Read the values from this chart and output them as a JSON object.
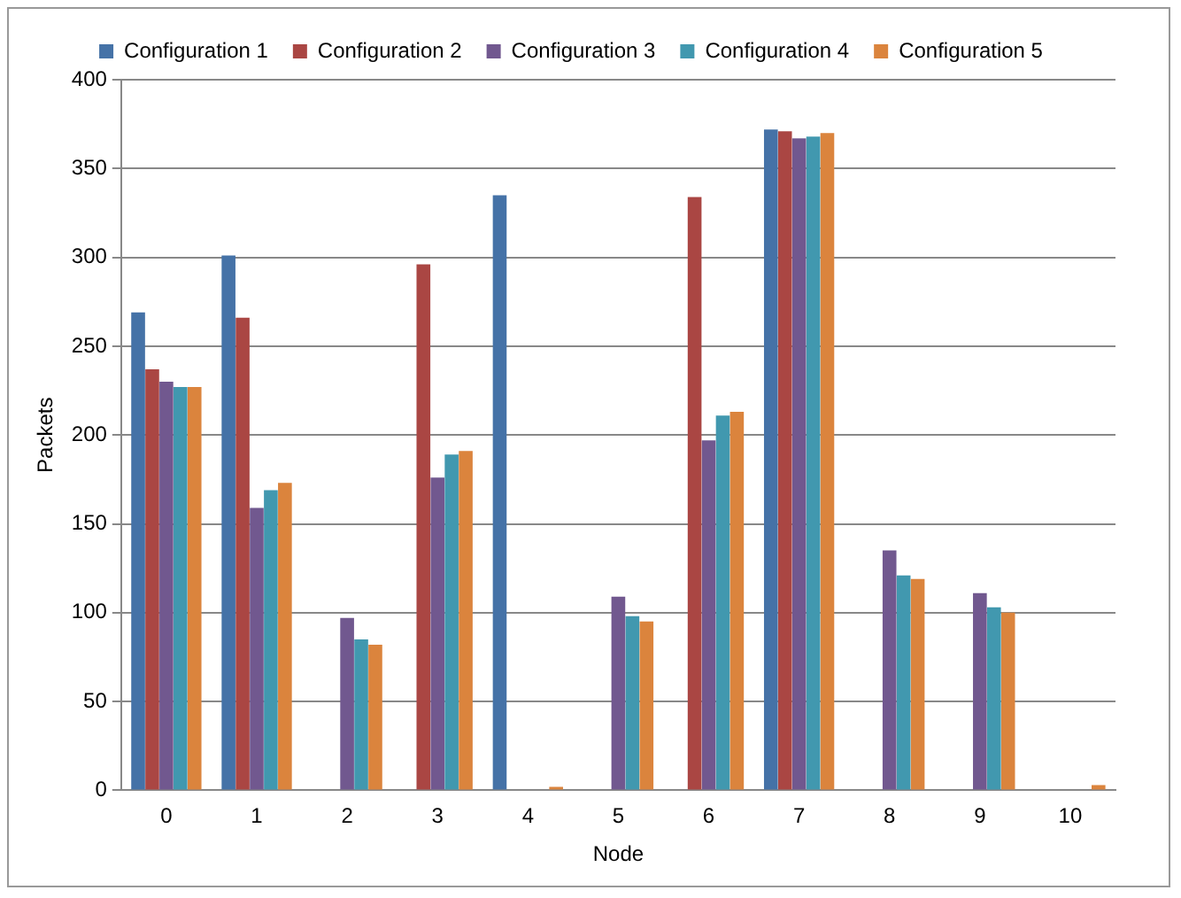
{
  "chart_data": {
    "type": "bar",
    "xlabel": "Node",
    "ylabel": "Packets",
    "categories": [
      "0",
      "1",
      "2",
      "3",
      "4",
      "5",
      "6",
      "7",
      "8",
      "9",
      "10"
    ],
    "series": [
      {
        "name": "Configuration 1",
        "color": "#4572a7",
        "values": [
          269,
          301,
          0,
          0,
          335,
          0,
          0,
          372,
          0,
          0,
          0
        ]
      },
      {
        "name": "Configuration 2",
        "color": "#aa4643",
        "values": [
          237,
          266,
          0,
          296,
          0,
          0,
          334,
          371,
          0,
          0,
          0
        ]
      },
      {
        "name": "Configuration 3",
        "color": "#71588f",
        "values": [
          230,
          159,
          97,
          176,
          null,
          109,
          197,
          367,
          135,
          111,
          0
        ]
      },
      {
        "name": "Configuration 4",
        "color": "#4198af",
        "values": [
          227,
          169,
          85,
          189,
          0,
          98,
          211,
          368,
          121,
          103,
          0
        ]
      },
      {
        "name": "Configuration 5",
        "color": "#db843d",
        "values": [
          227,
          173,
          82,
          191,
          2,
          95,
          213,
          370,
          119,
          100,
          3
        ]
      }
    ],
    "ylim": [
      0,
      400
    ],
    "yticks": [
      0,
      50,
      100,
      150,
      200,
      250,
      300,
      350,
      400
    ],
    "grid": "y",
    "legend": "top"
  }
}
